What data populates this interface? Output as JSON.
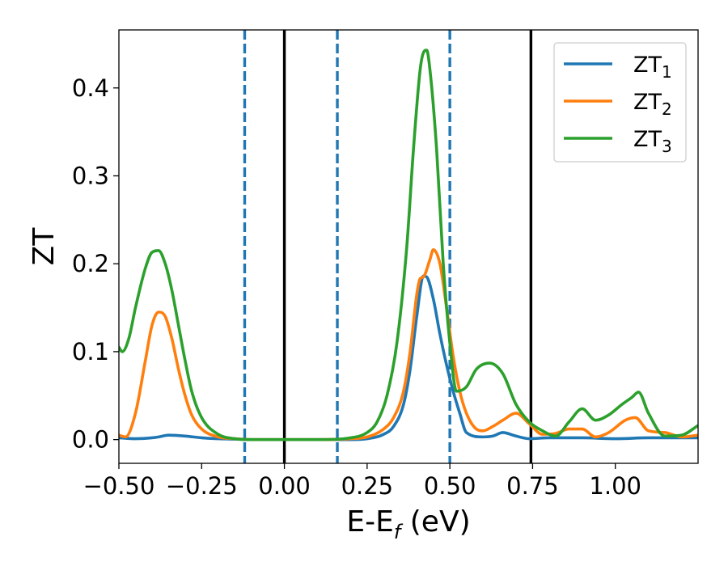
{
  "chart_data": {
    "type": "line",
    "title": "",
    "xlabel": {
      "main": "E-E",
      "sub": "f",
      "suffix": " (eV)"
    },
    "ylabel": "ZT",
    "xlim": [
      -0.5,
      1.25
    ],
    "ylim": [
      -0.027,
      0.466
    ],
    "xticks": [
      -0.5,
      -0.25,
      0.0,
      0.25,
      0.5,
      0.75,
      1.0
    ],
    "xtick_labels": [
      "−0.50",
      "−0.25",
      "0.00",
      "0.25",
      "0.50",
      "0.75",
      "1.00"
    ],
    "yticks": [
      0.0,
      0.1,
      0.2,
      0.3,
      0.4
    ],
    "ytick_labels": [
      "0.0",
      "0.1",
      "0.2",
      "0.3",
      "0.4"
    ],
    "grid": false,
    "legend_position": "top-right",
    "vlines": [
      {
        "x": -0.12,
        "style": "dashed",
        "color": "#1f77b4"
      },
      {
        "x": 0.0,
        "style": "solid",
        "color": "#000000"
      },
      {
        "x": 0.16,
        "style": "dashed",
        "color": "#1f77b4"
      },
      {
        "x": 0.5,
        "style": "dashed",
        "color": "#1f77b4"
      },
      {
        "x": 0.745,
        "style": "solid",
        "color": "#000000"
      }
    ],
    "series": [
      {
        "name": "ZT",
        "name_sub": "1",
        "color": "#1f77b4",
        "x": [
          -0.5,
          -0.45,
          -0.4,
          -0.38,
          -0.35,
          -0.3,
          -0.25,
          -0.2,
          -0.15,
          -0.1,
          0.0,
          0.1,
          0.2,
          0.25,
          0.3,
          0.33,
          0.36,
          0.38,
          0.4,
          0.42,
          0.43,
          0.45,
          0.47,
          0.49,
          0.51,
          0.53,
          0.55,
          0.6,
          0.63,
          0.66,
          0.7,
          0.74,
          0.8,
          0.9,
          1.0,
          1.1,
          1.25
        ],
        "y": [
          0.002,
          0.001,
          0.002,
          0.003,
          0.005,
          0.004,
          0.002,
          0.001,
          0.0005,
          0.0,
          0.0,
          0.0,
          0.0,
          0.001,
          0.006,
          0.015,
          0.04,
          0.08,
          0.14,
          0.186,
          0.185,
          0.16,
          0.12,
          0.085,
          0.055,
          0.03,
          0.008,
          0.003,
          0.004,
          0.008,
          0.004,
          0.001,
          0.002,
          0.002,
          0.001,
          0.002,
          0.002
        ]
      },
      {
        "name": "ZT",
        "name_sub": "2",
        "color": "#ff7f0e",
        "x": [
          -0.5,
          -0.48,
          -0.45,
          -0.42,
          -0.4,
          -0.38,
          -0.36,
          -0.34,
          -0.32,
          -0.3,
          -0.28,
          -0.25,
          -0.2,
          -0.15,
          -0.1,
          0.0,
          0.1,
          0.2,
          0.25,
          0.3,
          0.33,
          0.36,
          0.38,
          0.4,
          0.41,
          0.42,
          0.44,
          0.45,
          0.47,
          0.49,
          0.51,
          0.53,
          0.55,
          0.58,
          0.6,
          0.63,
          0.66,
          0.7,
          0.74,
          0.78,
          0.82,
          0.86,
          0.9,
          0.94,
          0.98,
          1.03,
          1.06,
          1.1,
          1.15,
          1.2,
          1.25
        ],
        "y": [
          0.005,
          0.003,
          0.03,
          0.09,
          0.13,
          0.145,
          0.14,
          0.115,
          0.08,
          0.05,
          0.028,
          0.012,
          0.003,
          0.001,
          0.0,
          0.0,
          0.0,
          0.001,
          0.003,
          0.012,
          0.025,
          0.055,
          0.1,
          0.165,
          0.183,
          0.185,
          0.205,
          0.216,
          0.2,
          0.15,
          0.095,
          0.055,
          0.03,
          0.012,
          0.01,
          0.015,
          0.022,
          0.03,
          0.018,
          0.006,
          0.007,
          0.012,
          0.012,
          0.003,
          0.008,
          0.022,
          0.025,
          0.01,
          0.008,
          0.003,
          0.005
        ]
      },
      {
        "name": "ZT",
        "name_sub": "3",
        "color": "#2ca02c",
        "x": [
          -0.5,
          -0.49,
          -0.47,
          -0.45,
          -0.42,
          -0.4,
          -0.38,
          -0.36,
          -0.34,
          -0.32,
          -0.3,
          -0.28,
          -0.25,
          -0.2,
          -0.15,
          -0.1,
          0.0,
          0.1,
          0.2,
          0.25,
          0.28,
          0.31,
          0.34,
          0.37,
          0.39,
          0.41,
          0.42,
          0.43,
          0.44,
          0.46,
          0.48,
          0.5,
          0.52,
          0.55,
          0.58,
          0.62,
          0.66,
          0.7,
          0.74,
          0.78,
          0.82,
          0.86,
          0.9,
          0.94,
          0.98,
          1.02,
          1.05,
          1.07,
          1.1,
          1.15,
          1.2,
          1.25
        ],
        "y": [
          0.105,
          0.1,
          0.115,
          0.15,
          0.195,
          0.213,
          0.215,
          0.2,
          0.17,
          0.13,
          0.09,
          0.055,
          0.025,
          0.006,
          0.001,
          0.0,
          0.0,
          0.0,
          0.002,
          0.008,
          0.02,
          0.05,
          0.11,
          0.22,
          0.33,
          0.42,
          0.44,
          0.443,
          0.42,
          0.33,
          0.2,
          0.11,
          0.055,
          0.06,
          0.08,
          0.087,
          0.075,
          0.04,
          0.02,
          0.01,
          0.004,
          0.02,
          0.035,
          0.022,
          0.028,
          0.04,
          0.048,
          0.054,
          0.03,
          0.004,
          0.005,
          0.016
        ]
      }
    ]
  }
}
